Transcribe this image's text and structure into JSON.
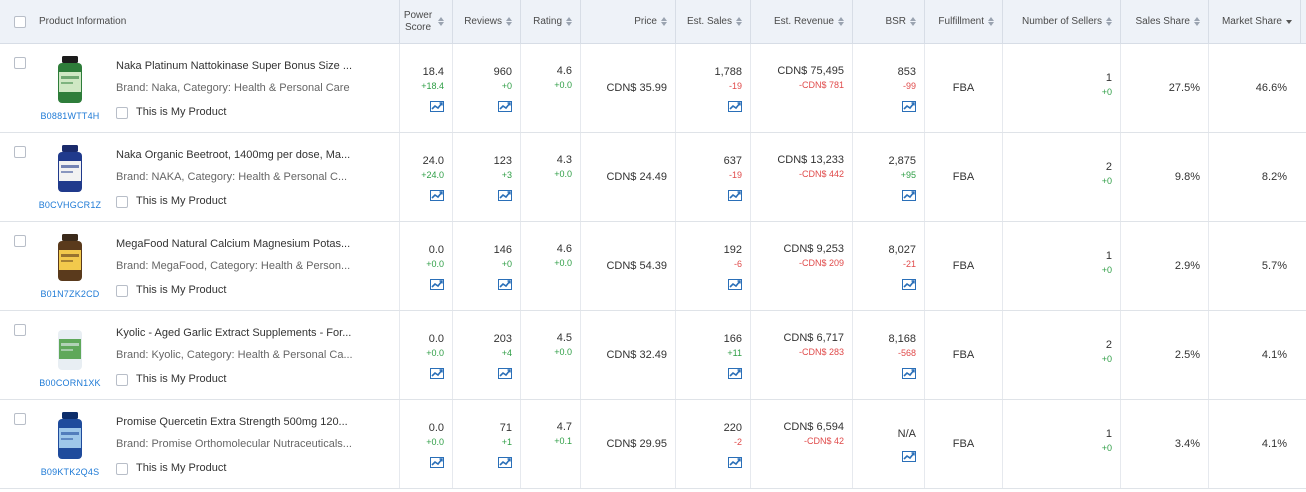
{
  "header": {
    "product_information": "Product Information",
    "power_score": "Power Score",
    "reviews": "Reviews",
    "rating": "Rating",
    "price": "Price",
    "est_sales": "Est. Sales",
    "est_revenue": "Est. Revenue",
    "bsr": "BSR",
    "fulfillment": "Fulfillment",
    "number_of_sellers": "Number of Sellers",
    "sales_share": "Sales Share",
    "market_share": "Market Share"
  },
  "colors": {
    "asin_link": "#1e7ad6",
    "positive": "#2e9e45",
    "negative": "#e04a4a",
    "header_bg": "#eef2f8"
  },
  "icons": {
    "trend": "trend-chart-icon",
    "sort": "sort-arrows-icon"
  },
  "rows": [
    {
      "title": "Naka Platinum Nattokinase Super Bonus Size ...",
      "brand_line": "Brand: Naka,  Category: Health & Personal Care",
      "asin": "B0881WTT4H",
      "mine_label": "This is My Product",
      "power_score": "18.4",
      "power_delta": "+18.4",
      "reviews": "960",
      "reviews_delta": "+0",
      "rating": "4.6",
      "rating_delta": "+0.0",
      "price": "CDN$ 35.99",
      "sales": "1,788",
      "sales_delta": "-19",
      "revenue": "CDN$ 75,495",
      "revenue_delta": "-CDN$ 781",
      "bsr": "853",
      "bsr_delta": "-99",
      "fulfillment": "FBA",
      "sellers": "1",
      "sellers_delta": "+0",
      "sales_share": "27.5%",
      "market_share": "46.6%"
    },
    {
      "title": "Naka Organic Beetroot, 1400mg per dose, Ma...",
      "brand_line": "Brand: NAKA,  Category: Health & Personal C...",
      "asin": "B0CVHGCR1Z",
      "mine_label": "This is My Product",
      "power_score": "24.0",
      "power_delta": "+24.0",
      "reviews": "123",
      "reviews_delta": "+3",
      "rating": "4.3",
      "rating_delta": "+0.0",
      "price": "CDN$ 24.49",
      "sales": "637",
      "sales_delta": "-19",
      "revenue": "CDN$ 13,233",
      "revenue_delta": "-CDN$ 442",
      "bsr": "2,875",
      "bsr_delta": "+95",
      "fulfillment": "FBA",
      "sellers": "2",
      "sellers_delta": "+0",
      "sales_share": "9.8%",
      "market_share": "8.2%"
    },
    {
      "title": "MegaFood Natural Calcium Magnesium Potas...",
      "brand_line": "Brand: MegaFood,  Category: Health & Person...",
      "asin": "B01N7ZK2CD",
      "mine_label": "This is My Product",
      "power_score": "0.0",
      "power_delta": "+0.0",
      "reviews": "146",
      "reviews_delta": "+0",
      "rating": "4.6",
      "rating_delta": "+0.0",
      "price": "CDN$ 54.39",
      "sales": "192",
      "sales_delta": "-6",
      "revenue": "CDN$ 9,253",
      "revenue_delta": "-CDN$ 209",
      "bsr": "8,027",
      "bsr_delta": "-21",
      "fulfillment": "FBA",
      "sellers": "1",
      "sellers_delta": "+0",
      "sales_share": "2.9%",
      "market_share": "5.7%"
    },
    {
      "title": "Kyolic - Aged Garlic Extract Supplements - For...",
      "brand_line": "Brand: Kyolic,  Category: Health & Personal Ca...",
      "asin": "B00CORN1XK",
      "mine_label": "This is My Product",
      "power_score": "0.0",
      "power_delta": "+0.0",
      "reviews": "203",
      "reviews_delta": "+4",
      "rating": "4.5",
      "rating_delta": "+0.0",
      "price": "CDN$ 32.49",
      "sales": "166",
      "sales_delta": "+11",
      "revenue": "CDN$ 6,717",
      "revenue_delta": "-CDN$ 283",
      "bsr": "8,168",
      "bsr_delta": "-568",
      "fulfillment": "FBA",
      "sellers": "2",
      "sellers_delta": "+0",
      "sales_share": "2.5%",
      "market_share": "4.1%"
    },
    {
      "title": "Promise Quercetin Extra Strength 500mg 120...",
      "brand_line": "Brand: Promise Orthomolecular Nutraceuticals...",
      "asin": "B09KTK2Q4S",
      "mine_label": "This is My Product",
      "power_score": "0.0",
      "power_delta": "+0.0",
      "reviews": "71",
      "reviews_delta": "+1",
      "rating": "4.7",
      "rating_delta": "+0.1",
      "price": "CDN$ 29.95",
      "sales": "220",
      "sales_delta": "-2",
      "revenue": "CDN$ 6,594",
      "revenue_delta": "-CDN$ 42",
      "bsr": "N/A",
      "bsr_delta": "",
      "fulfillment": "FBA",
      "sellers": "1",
      "sellers_delta": "+0",
      "sales_share": "3.4%",
      "market_share": "4.1%"
    }
  ]
}
